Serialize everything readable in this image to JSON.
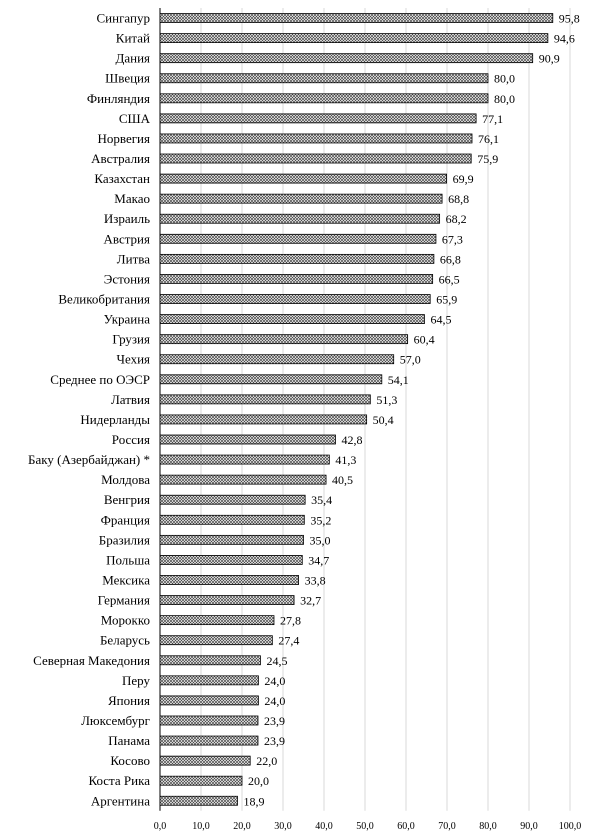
{
  "chart_data": {
    "type": "bar",
    "orientation": "horizontal",
    "title": "",
    "xlabel": "",
    "ylabel": "",
    "xlim": [
      0,
      100
    ],
    "x_ticks": [
      "0,0",
      "10,0",
      "20,0",
      "30,0",
      "40,0",
      "50,0",
      "60,0",
      "70,0",
      "80,0",
      "90,0",
      "100,0"
    ],
    "grid": "vertical",
    "bar_pattern": "crosshatch",
    "categories": [
      "Сингапур",
      "Китай",
      "Дания",
      "Швеция",
      "Финляндия",
      "США",
      "Норвегия",
      "Австралия",
      "Казахстан",
      "Макао",
      "Израиль",
      "Австрия",
      "Литва",
      "Эстония",
      "Великобритания",
      "Украина",
      "Грузия",
      "Чехия",
      "Среднее по ОЭСР",
      "Латвия",
      "Нидерланды",
      "Россия",
      "Баку (Азербайджан) *",
      "Молдова",
      "Венгрия",
      "Франция",
      "Бразилия",
      "Польша",
      "Мексика",
      "Германия",
      "Морокко",
      "Беларусь",
      "Северная Македония",
      "Перу",
      "Япония",
      "Люксембург",
      "Панама",
      "Косово",
      "Коста Рика",
      "Аргентина"
    ],
    "values": [
      95.8,
      94.6,
      90.9,
      80.0,
      80.0,
      77.1,
      76.1,
      75.9,
      69.9,
      68.8,
      68.2,
      67.3,
      66.8,
      66.5,
      65.9,
      64.5,
      60.4,
      57.0,
      54.1,
      51.3,
      50.4,
      42.8,
      41.3,
      40.5,
      35.4,
      35.2,
      35.0,
      34.7,
      33.8,
      32.7,
      27.8,
      27.4,
      24.5,
      24.0,
      24.0,
      23.9,
      23.9,
      22.0,
      20.0,
      18.9
    ],
    "value_labels": [
      "95,8",
      "94,6",
      "90,9",
      "80,0",
      "80,0",
      "77,1",
      "76,1",
      "75,9",
      "69,9",
      "68,8",
      "68,2",
      "67,3",
      "66,8",
      "66,5",
      "65,9",
      "64,5",
      "60,4",
      "57,0",
      "54,1",
      "51,3",
      "50,4",
      "42,8",
      "41,3",
      "40,5",
      "35,4",
      "35,2",
      "35,0",
      "34,7",
      "33,8",
      "32,7",
      "27,8",
      "27,4",
      "24,5",
      "24,0",
      "24,0",
      "23,9",
      "23,9",
      "22,0",
      "20,0",
      "18,9"
    ]
  }
}
